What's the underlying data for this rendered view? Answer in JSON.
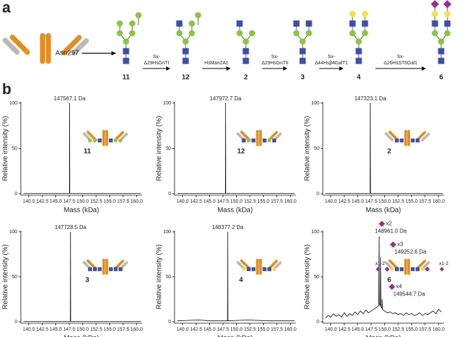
{
  "panel_labels": [
    "a",
    "b"
  ],
  "scheme": {
    "antibody_label": "Asn297",
    "compounds": [
      "11",
      "12",
      "2",
      "3",
      "4",
      "6"
    ],
    "enzymes": [
      [
        "Sx-",
        "Δ29HsGnTI"
      ],
      [
        "HsMan2A1"
      ],
      [
        "Sx-",
        "Δ29HsGnTII"
      ],
      [
        "Sx-",
        "Δ44Hsβ4GalT1"
      ],
      [
        "Sx-",
        "Δ26HsST6Gal1"
      ]
    ]
  },
  "chart_data": [
    {
      "type": "line",
      "compound": "11",
      "peak_label": "147567.1 Da",
      "x_label": "Mass (kDa)",
      "y_label": "Relative intensity (%)",
      "xlim": [
        138.5,
        161
      ],
      "ylim": [
        0,
        100
      ],
      "yticks": [
        0,
        50,
        100
      ],
      "xticks": [
        {
          "value": 140,
          "label": "140.0"
        },
        142.5,
        {
          "value": 145,
          "label": "145.0"
        },
        147.5,
        {
          "value": 150,
          "label": "150.0"
        },
        152.5,
        {
          "value": 155,
          "label": "155.0"
        },
        157.5,
        {
          "value": 160,
          "label": "160.0"
        }
      ],
      "series": [
        {
          "color": "#000000",
          "x": [
            139,
            147.54,
            147.5671,
            147.6,
            160.8
          ],
          "values": [
            0.5,
            0.5,
            100,
            0.5,
            0.5
          ]
        }
      ]
    },
    {
      "type": "line",
      "compound": "12",
      "peak_label": "147972.7 Da",
      "x_label": "Mass (kDa)",
      "y_label": "Relative intensity (%)",
      "xlim": [
        138.5,
        161
      ],
      "ylim": [
        0,
        100
      ],
      "yticks": [
        0,
        50,
        100
      ],
      "xticks": [
        {
          "value": 140,
          "label": "140.0"
        },
        142.5,
        {
          "value": 145,
          "label": "145.0"
        },
        147.5,
        {
          "value": 150,
          "label": "150.0"
        },
        152.5,
        {
          "value": 155,
          "label": "155.0"
        },
        157.5,
        {
          "value": 160,
          "label": "160.0"
        }
      ],
      "series": [
        {
          "color": "#000000",
          "x": [
            139,
            147.94,
            147.9727,
            148.0,
            160.8
          ],
          "values": [
            0.5,
            0.5,
            100,
            0.5,
            0.5
          ]
        }
      ]
    },
    {
      "type": "line",
      "compound": "2",
      "peak_label": "147323.1 Da",
      "x_label": "Mass (kDa)",
      "y_label": "Relative intensity (%)",
      "xlim": [
        138.5,
        161
      ],
      "ylim": [
        0,
        100
      ],
      "yticks": [
        0,
        50,
        100
      ],
      "xticks": [
        {
          "value": 140,
          "label": "140.0"
        },
        142.5,
        {
          "value": 145,
          "label": "145.0"
        },
        147.5,
        {
          "value": 150,
          "label": "150.0"
        },
        152.5,
        {
          "value": 155,
          "label": "155.0"
        },
        157.5,
        {
          "value": 160,
          "label": "160.0"
        }
      ],
      "series": [
        {
          "color": "#000000",
          "x": [
            139,
            147.29,
            147.3231,
            147.36,
            160.8
          ],
          "values": [
            0.5,
            0.5,
            100,
            0.5,
            0.5
          ]
        }
      ]
    },
    {
      "type": "line",
      "compound": "3",
      "peak_label": "147728.5 Da",
      "x_label": "Mass (kDa)",
      "y_label": "Relative intensity (%)",
      "xlim": [
        138.5,
        161
      ],
      "ylim": [
        0,
        100
      ],
      "yticks": [
        0,
        50,
        100
      ],
      "xticks": [
        {
          "value": 140,
          "label": "140.0"
        },
        142.5,
        {
          "value": 145,
          "label": "145.0"
        },
        147.5,
        {
          "value": 150,
          "label": "150.0"
        },
        152.5,
        {
          "value": 155,
          "label": "155.0"
        },
        157.5,
        {
          "value": 160,
          "label": "160.0"
        }
      ],
      "series": [
        {
          "color": "#000000",
          "x": [
            139,
            147.7,
            147.7285,
            147.76,
            160.8
          ],
          "values": [
            0.5,
            0.5,
            100,
            0.5,
            0.5
          ]
        }
      ]
    },
    {
      "type": "line",
      "compound": "4",
      "peak_label": "148377.2 Da",
      "x_label": "Mass (kDa)",
      "y_label": "Relative intensity (%)",
      "xlim": [
        138.5,
        161
      ],
      "ylim": [
        0,
        100
      ],
      "yticks": [
        0,
        50,
        100
      ],
      "xticks": [
        {
          "value": 140,
          "label": "140.0"
        },
        142.5,
        {
          "value": 145,
          "label": "145.0"
        },
        147.5,
        {
          "value": 150,
          "label": "150.0"
        },
        152.5,
        {
          "value": 155,
          "label": "155.0"
        },
        157.5,
        {
          "value": 160,
          "label": "160.0"
        }
      ],
      "series": [
        {
          "color": "#000000",
          "x": [
            139,
            143,
            145,
            148.35,
            148.3772,
            148.41,
            152,
            156,
            160.8
          ],
          "values": [
            1,
            2,
            1,
            1,
            100,
            1,
            2,
            1,
            1
          ]
        }
      ]
    },
    {
      "type": "line",
      "compound": "6",
      "inset_labels": [
        "x1-2",
        "x1-2"
      ],
      "peak_labels": [
        {
          "count": "x2",
          "label": "148961.0 Da"
        },
        {
          "count": "x3",
          "label": "149252.6 Da"
        },
        {
          "count": "x4",
          "label": "149544.7 Da"
        }
      ],
      "x_label": "Mass (kDa)",
      "y_label": "Relative intensity (%)",
      "xlim": [
        138.5,
        161
      ],
      "ylim": [
        0,
        100
      ],
      "yticks": [
        0,
        50,
        100
      ],
      "xticks": [
        {
          "value": 140,
          "label": "140.0"
        },
        142.5,
        {
          "value": 145,
          "label": "145.0"
        },
        147.5,
        {
          "value": 150,
          "label": "150.0"
        },
        152.5,
        {
          "value": 155,
          "label": "155.0"
        },
        157.5,
        {
          "value": 160,
          "label": "160.0"
        }
      ],
      "series": [
        {
          "color": "#000000",
          "x": [
            139.0,
            139.5,
            140.0,
            140.5,
            141.0,
            141.5,
            142.0,
            142.5,
            143.0,
            143.5,
            144.0,
            144.5,
            145.0,
            145.5,
            146.0,
            146.5,
            147.0,
            147.5,
            148.0,
            148.5,
            148.9,
            148.961,
            149.0,
            149.2,
            149.2526,
            149.3,
            149.5,
            149.5447,
            149.6,
            150.0,
            150.5,
            151.0,
            151.5,
            152.0,
            152.5,
            153.0,
            153.5,
            154.0,
            154.5,
            155.0,
            155.5,
            156.0,
            156.5,
            157.0,
            157.5,
            158.0,
            158.5,
            159.0,
            159.5,
            160.0,
            160.5
          ],
          "values": [
            4,
            7,
            5,
            9,
            6,
            8,
            5,
            10,
            6,
            9,
            7,
            11,
            8,
            12,
            9,
            13,
            10,
            12,
            14,
            16,
            18,
            95,
            20,
            18,
            72,
            17,
            15,
            25,
            14,
            12,
            10,
            11,
            9,
            10,
            8,
            9,
            7,
            10,
            8,
            9,
            7,
            8,
            10,
            7,
            9,
            8,
            10,
            12,
            9,
            14,
            11
          ]
        }
      ]
    }
  ]
}
